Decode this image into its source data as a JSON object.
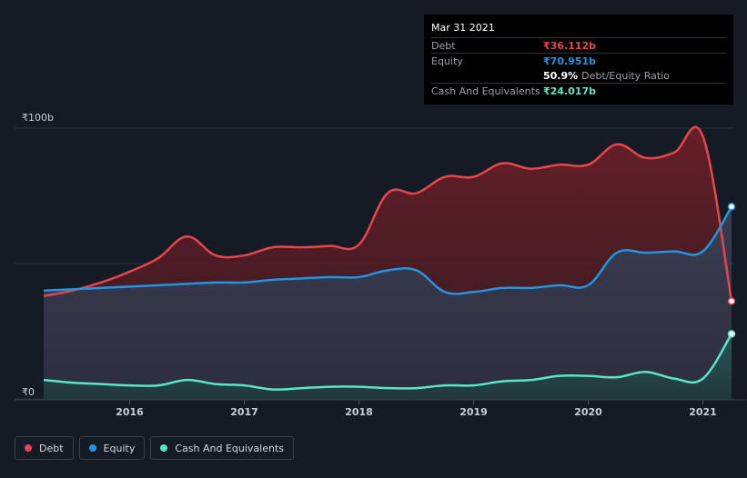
{
  "chart_data": {
    "type": "area",
    "x_start": 2015.25,
    "x_end": 2021.25,
    "ylim": [
      0,
      100
    ],
    "y_tick_labels": [
      {
        "value": 100,
        "label": "₹100b"
      },
      {
        "value": 0,
        "label": "₹0"
      }
    ],
    "x_ticks": [
      2016,
      2017,
      2018,
      2019,
      2020,
      2021
    ],
    "x_tick_labels": [
      "2016",
      "2017",
      "2018",
      "2019",
      "2020",
      "2021"
    ],
    "series": [
      {
        "name": "Debt",
        "color": "#e6454b",
        "points": [
          [
            2015.25,
            38
          ],
          [
            2015.5,
            40
          ],
          [
            2015.75,
            43
          ],
          [
            2016.0,
            47
          ],
          [
            2016.25,
            52
          ],
          [
            2016.5,
            60
          ],
          [
            2016.75,
            53
          ],
          [
            2017.0,
            53
          ],
          [
            2017.25,
            56
          ],
          [
            2017.5,
            56
          ],
          [
            2017.75,
            56.5
          ],
          [
            2018.0,
            57
          ],
          [
            2018.25,
            76
          ],
          [
            2018.5,
            76
          ],
          [
            2018.75,
            82
          ],
          [
            2019.0,
            82
          ],
          [
            2019.25,
            87
          ],
          [
            2019.5,
            85
          ],
          [
            2019.75,
            86.5
          ],
          [
            2020.0,
            86.5
          ],
          [
            2020.25,
            94
          ],
          [
            2020.5,
            89
          ],
          [
            2020.75,
            91
          ],
          [
            2021.0,
            97
          ],
          [
            2021.25,
            36.1
          ]
        ]
      },
      {
        "name": "Equity",
        "color": "#2394df",
        "points": [
          [
            2015.25,
            40
          ],
          [
            2015.5,
            40.5
          ],
          [
            2015.75,
            41
          ],
          [
            2016.0,
            41.5
          ],
          [
            2016.25,
            42
          ],
          [
            2016.5,
            42.5
          ],
          [
            2016.75,
            43
          ],
          [
            2017.0,
            43
          ],
          [
            2017.25,
            44
          ],
          [
            2017.5,
            44.5
          ],
          [
            2017.75,
            45
          ],
          [
            2018.0,
            45
          ],
          [
            2018.25,
            47.5
          ],
          [
            2018.5,
            47.5
          ],
          [
            2018.75,
            39.5
          ],
          [
            2019.0,
            39.5
          ],
          [
            2019.25,
            41
          ],
          [
            2019.5,
            41
          ],
          [
            2019.75,
            42
          ],
          [
            2020.0,
            42
          ],
          [
            2020.25,
            54
          ],
          [
            2020.5,
            54
          ],
          [
            2020.75,
            54.5
          ],
          [
            2021.0,
            54.5
          ],
          [
            2021.25,
            71
          ]
        ]
      },
      {
        "name": "Cash And Equivalents",
        "color": "#58e5c8",
        "points": [
          [
            2015.25,
            7
          ],
          [
            2015.5,
            6
          ],
          [
            2015.75,
            5.5
          ],
          [
            2016.0,
            5
          ],
          [
            2016.25,
            5
          ],
          [
            2016.5,
            7
          ],
          [
            2016.75,
            5.5
          ],
          [
            2017.0,
            5
          ],
          [
            2017.25,
            3.5
          ],
          [
            2017.5,
            4
          ],
          [
            2017.75,
            4.5
          ],
          [
            2018.0,
            4.5
          ],
          [
            2018.25,
            4
          ],
          [
            2018.5,
            4
          ],
          [
            2018.75,
            5
          ],
          [
            2019.0,
            5
          ],
          [
            2019.25,
            6.5
          ],
          [
            2019.5,
            7
          ],
          [
            2019.75,
            8.5
          ],
          [
            2020.0,
            8.5
          ],
          [
            2020.25,
            8
          ],
          [
            2020.5,
            10
          ],
          [
            2020.75,
            7.5
          ],
          [
            2021.0,
            7.5
          ],
          [
            2021.25,
            24
          ]
        ]
      }
    ]
  },
  "tooltip": {
    "date": "Mar 31 2021",
    "debt_label": "Debt",
    "debt_value": "₹36.112b",
    "equity_label": "Equity",
    "equity_value": "₹70.951b",
    "ratio_value": "50.9%",
    "ratio_text": "Debt/Equity Ratio",
    "cash_label": "Cash And Equivalents",
    "cash_value": "₹24.017b"
  },
  "legend": {
    "debt": "Debt",
    "equity": "Equity",
    "cash": "Cash And Equivalents"
  },
  "colors": {
    "debt": "#e6454b",
    "equity": "#2394df",
    "cash": "#58e5c8",
    "background": "#151b24"
  }
}
